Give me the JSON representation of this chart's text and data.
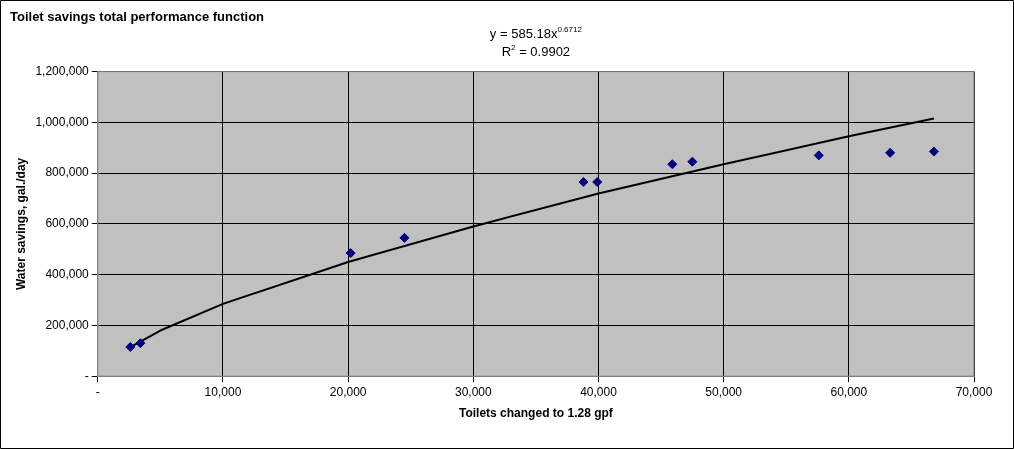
{
  "chart_data": {
    "type": "scatter",
    "title": "Toilet savings total performance function",
    "xlabel": "Toilets changed to 1.28 gpf",
    "ylabel": "Water savings, gal./day",
    "annotations": [
      "y = 585.18x$^{0.6712}$",
      "R$^{2}$ = 0.9902"
    ],
    "series": [
      {
        "type": "scatter",
        "color": "#000080",
        "marker": "diamond",
        "x": [
          2600,
          3400,
          20200,
          24500,
          38800,
          39900,
          45900,
          47500,
          57600,
          63300,
          66800
        ],
        "values": [
          115000,
          130000,
          485000,
          545000,
          765000,
          765000,
          835000,
          845000,
          870000,
          880000,
          885000
        ]
      },
      {
        "type": "line",
        "color": "#000000",
        "marker": "none",
        "line_style": "solid",
        "x": [
          2600,
          5000,
          10000,
          20000,
          30000,
          40000,
          50000,
          60000,
          66800
        ],
        "values": [
          115000,
          180000,
          285000,
          450000,
          590000,
          720000,
          835000,
          945000,
          1015000
        ]
      }
    ],
    "xlim": [
      0,
      70000
    ],
    "xticks": [
      {
        "value": 0,
        "label": "-"
      },
      {
        "value": 10000,
        "label": "10,000"
      },
      {
        "value": 20000,
        "label": "20,000"
      },
      {
        "value": 30000,
        "label": "30,000"
      },
      {
        "value": 40000,
        "label": "40,000"
      },
      {
        "value": 50000,
        "label": "50,000"
      },
      {
        "value": 60000,
        "label": "60,000"
      },
      {
        "value": 70000,
        "label": "70,000"
      }
    ],
    "ylim": [
      0,
      1200000
    ],
    "yticks": [
      {
        "value": 0,
        "label": "-"
      },
      {
        "value": 200000,
        "label": "200,000"
      },
      {
        "value": 400000,
        "label": "400,000"
      },
      {
        "value": 600000,
        "label": "600,000"
      },
      {
        "value": 800000,
        "label": "800,000"
      },
      {
        "value": 1000000,
        "label": "1,000,000"
      },
      {
        "value": 1200000,
        "label": "1,200,000"
      }
    ],
    "grid": true,
    "legend": false
  }
}
